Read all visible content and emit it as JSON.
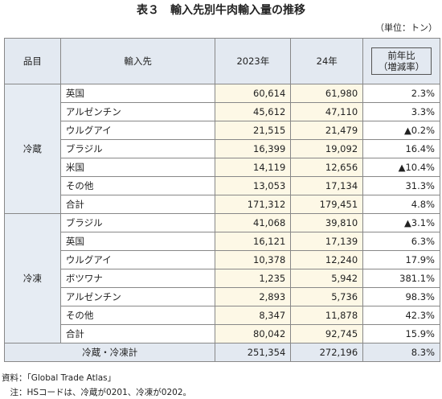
{
  "title": "表３　輸入先別牛肉輸入量の推移",
  "unit": "（単位：トン）",
  "table": {
    "header": [
      "品目",
      "輸入先",
      "2023年",
      "24年",
      "前年比\n（増減率）"
    ],
    "groups": [
      {
        "name": "冷蔵",
        "rows": [
          [
            "英国",
            "60,614",
            "61,980",
            "2.3%"
          ],
          [
            "アルゼンチン",
            "45,612",
            "47,110",
            "3.3%"
          ],
          [
            "ウルグアイ",
            "21,515",
            "21,479",
            "▲0.2%"
          ],
          [
            "ブラジル",
            "16,399",
            "19,092",
            "16.4%"
          ],
          [
            "米国",
            "14,119",
            "12,656",
            "▲10.4%"
          ],
          [
            "その他",
            "13,053",
            "17,134",
            "31.3%"
          ],
          [
            "合計",
            "171,312",
            "179,451",
            "4.8%"
          ]
        ]
      },
      {
        "name": "冷凍",
        "rows": [
          [
            "ブラジル",
            "41,068",
            "39,810",
            "▲3.1%"
          ],
          [
            "英国",
            "16,121",
            "17,139",
            "6.3%"
          ],
          [
            "ウルグアイ",
            "10,378",
            "12,240",
            "17.9%"
          ],
          [
            "ボツワナ",
            "1,235",
            "5,942",
            "381.1%"
          ],
          [
            "アルゼンチン",
            "2,893",
            "5,736",
            "98.3%"
          ],
          [
            "その他",
            "8,347",
            "11,878",
            "42.3%"
          ],
          [
            "合計",
            "80,042",
            "92,745",
            "15.9%"
          ]
        ]
      }
    ],
    "total": [
      "冷蔵・冷凍計",
      "251,354",
      "272,196",
      "8.3%"
    ]
  },
  "notes": [
    "資料：「Global Trade Atlas」",
    "　注：HSコードは、冷蔵が0201、冷凍が0202。"
  ]
}
